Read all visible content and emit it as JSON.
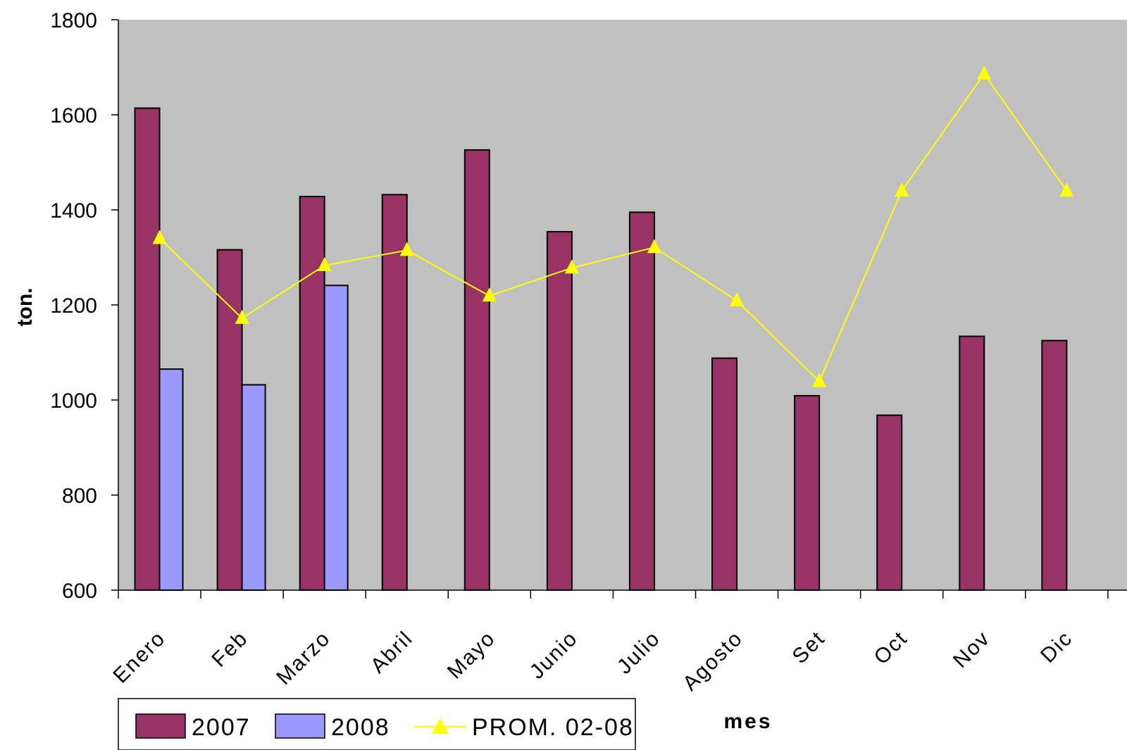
{
  "chart_data": {
    "type": "bar",
    "categories": [
      "Enero",
      "Feb",
      "Marzo",
      "Abril",
      "Mayo",
      "Junio",
      "Julio",
      "Agosto",
      "Set",
      "Oct",
      "Nov",
      "Dic"
    ],
    "series": [
      {
        "name": "2007",
        "type": "bar",
        "color": "#993366",
        "values": [
          1614,
          1316,
          1428,
          1432,
          1526,
          1354,
          1395,
          1088,
          1009,
          968,
          1134,
          1125
        ]
      },
      {
        "name": "2008",
        "type": "bar",
        "color": "#9999FF",
        "values": [
          1065,
          1032,
          1241,
          null,
          null,
          null,
          null,
          null,
          null,
          null,
          null,
          null
        ]
      },
      {
        "name": "PROM. 02-08",
        "type": "line",
        "color": "#FFFF00",
        "marker": "triangle",
        "values": [
          1340,
          1172,
          1283,
          1315,
          1219,
          1278,
          1321,
          1209,
          1039,
          1440,
          1686,
          1440
        ]
      }
    ],
    "xlabel": "mes",
    "ylabel": "ton.",
    "ylim": [
      600,
      1800
    ],
    "yticks": [
      "600",
      "800",
      "1000",
      "1200",
      "1400",
      "1600",
      "1800"
    ],
    "plot_background": "#C0C0C0",
    "grid": false,
    "legend_position": "bottom-left"
  }
}
